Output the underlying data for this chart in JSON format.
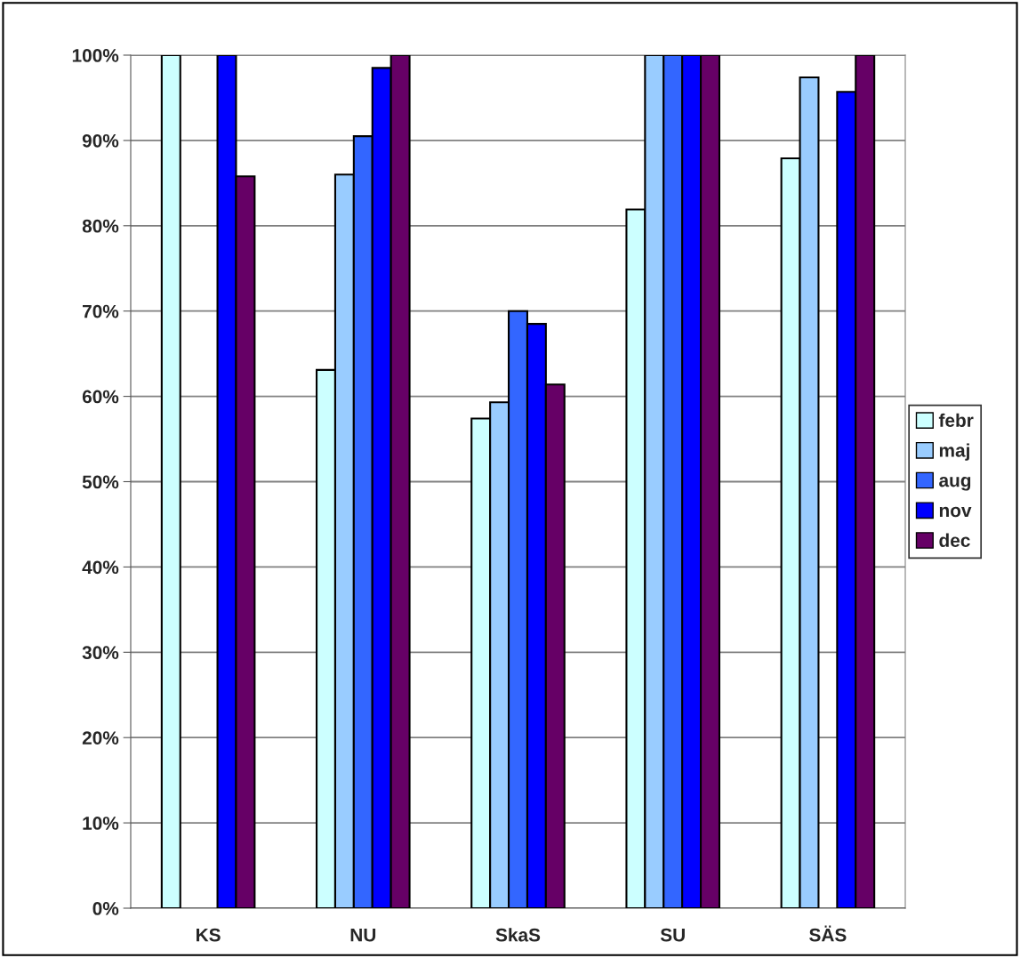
{
  "chart_data": {
    "type": "bar",
    "categories": [
      "KS",
      "NU",
      "SkaS",
      "SU",
      "SÄS"
    ],
    "series": [
      {
        "name": "febr",
        "color": "#ccffff",
        "values": [
          100,
          63.1,
          57.4,
          81.9,
          87.9
        ]
      },
      {
        "name": "maj",
        "color": "#99ccff",
        "values": [
          null,
          86.0,
          59.3,
          100,
          97.4
        ]
      },
      {
        "name": "aug",
        "color": "#3366ff",
        "values": [
          null,
          90.5,
          70.0,
          100,
          null
        ]
      },
      {
        "name": "nov",
        "color": "#0000ff",
        "values": [
          100,
          98.5,
          68.5,
          100,
          95.7
        ]
      },
      {
        "name": "dec",
        "color": "#660066",
        "values": [
          85.8,
          100,
          61.4,
          100,
          100
        ]
      }
    ],
    "ylim": [
      0,
      100
    ],
    "yticks": [
      {
        "value": 0,
        "label": "0%"
      },
      {
        "value": 10,
        "label": "10%"
      },
      {
        "value": 20,
        "label": "20%"
      },
      {
        "value": 30,
        "label": "30%"
      },
      {
        "value": 40,
        "label": "40%"
      },
      {
        "value": 50,
        "label": "50%"
      },
      {
        "value": 60,
        "label": "60%"
      },
      {
        "value": 70,
        "label": "70%"
      },
      {
        "value": 80,
        "label": "80%"
      },
      {
        "value": 90,
        "label": "90%"
      },
      {
        "value": 100,
        "label": "100%"
      }
    ],
    "grid": "y",
    "legend": "right"
  }
}
